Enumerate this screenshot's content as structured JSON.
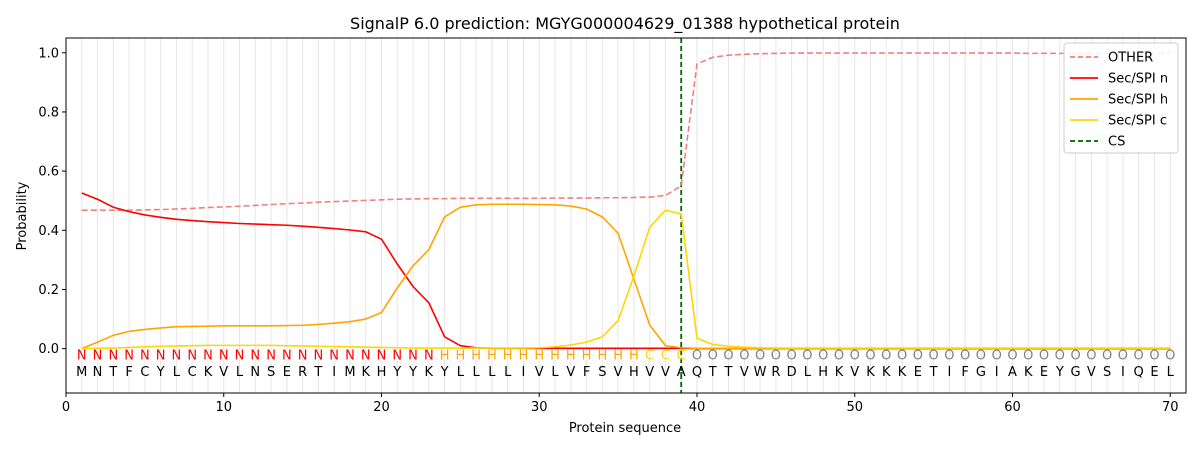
{
  "chart_data": {
    "type": "line",
    "title": "SignalP 6.0 prediction: MGYG000004629_01388 hypothetical protein",
    "xlabel": "Protein sequence",
    "ylabel": "Probability",
    "xlim": [
      0,
      71
    ],
    "ylim": [
      -0.15,
      1.05
    ],
    "x_ticks": [
      0,
      10,
      20,
      30,
      40,
      50,
      60,
      70
    ],
    "y_ticks": [
      0.0,
      0.2,
      0.4,
      0.6,
      0.8,
      1.0
    ],
    "y_tick_labels": [
      "0.0",
      "0.2",
      "0.4",
      "0.6",
      "0.8",
      "1.0"
    ],
    "grid": "vertical lines at each residue",
    "legend_position": "top-right",
    "sequence": [
      "M",
      "N",
      "T",
      "F",
      "C",
      "Y",
      "L",
      "C",
      "K",
      "V",
      "L",
      "N",
      "S",
      "E",
      "R",
      "T",
      "I",
      "M",
      "K",
      "H",
      "Y",
      "Y",
      "K",
      "Y",
      "L",
      "L",
      "L",
      "L",
      "I",
      "V",
      "L",
      "V",
      "F",
      "S",
      "V",
      "H",
      "V",
      "V",
      "A",
      "Q",
      "T",
      "T",
      "V",
      "W",
      "R",
      "D",
      "L",
      "H",
      "K",
      "V",
      "K",
      "K",
      "K",
      "E",
      "T",
      "I",
      "F",
      "G",
      "I",
      "A",
      "K",
      "E",
      "Y",
      "G",
      "V",
      "S",
      "I",
      "Q",
      "E",
      "L"
    ],
    "labels": [
      "N",
      "N",
      "N",
      "N",
      "N",
      "N",
      "N",
      "N",
      "N",
      "N",
      "N",
      "N",
      "N",
      "N",
      "N",
      "N",
      "N",
      "N",
      "N",
      "N",
      "N",
      "N",
      "N",
      "H",
      "H",
      "H",
      "H",
      "H",
      "H",
      "H",
      "H",
      "H",
      "H",
      "H",
      "H",
      "H",
      "C",
      "C",
      "C",
      "O",
      "O",
      "O",
      "O",
      "O",
      "O",
      "O",
      "O",
      "O",
      "O",
      "O",
      "O",
      "O",
      "O",
      "O",
      "O",
      "O",
      "O",
      "O",
      "O",
      "O",
      "O",
      "O",
      "O",
      "O",
      "O",
      "O",
      "O",
      "O",
      "O",
      "O"
    ],
    "label_colors": {
      "N": "#ff0000",
      "H": "#ffa500",
      "C": "#ffd700",
      "O": "#808080"
    },
    "cs_position": 39,
    "series": [
      {
        "name": "OTHER",
        "color": "#f08080",
        "dash": "dashed",
        "values": [
          0.468,
          0.468,
          0.468,
          0.468,
          0.469,
          0.47,
          0.472,
          0.474,
          0.477,
          0.479,
          0.481,
          0.484,
          0.487,
          0.49,
          0.492,
          0.495,
          0.497,
          0.499,
          0.501,
          0.503,
          0.505,
          0.506,
          0.507,
          0.507,
          0.508,
          0.508,
          0.508,
          0.508,
          0.508,
          0.508,
          0.509,
          0.509,
          0.509,
          0.51,
          0.51,
          0.511,
          0.512,
          0.518,
          0.55,
          0.962,
          0.985,
          0.992,
          0.995,
          0.997,
          0.998,
          0.999,
          0.999,
          0.999,
          0.999,
          0.999,
          0.999,
          0.999,
          0.999,
          0.999,
          0.999,
          0.999,
          0.999,
          0.999,
          0.999,
          0.999,
          0.998,
          0.998,
          0.998,
          0.998,
          0.998,
          0.998,
          0.998,
          0.998,
          0.998,
          0.998
        ]
      },
      {
        "name": "Sec/SPI n",
        "color": "#ff0000",
        "dash": "solid",
        "values": [
          0.526,
          0.505,
          0.478,
          0.463,
          0.452,
          0.444,
          0.437,
          0.433,
          0.429,
          0.426,
          0.423,
          0.421,
          0.419,
          0.417,
          0.414,
          0.41,
          0.406,
          0.401,
          0.395,
          0.37,
          0.286,
          0.21,
          0.155,
          0.04,
          0.01,
          0.003,
          0.001,
          0.001,
          0.001,
          0.001,
          0.001,
          0.001,
          0.001,
          0.001,
          0.001,
          0.001,
          0.001,
          0.001,
          0.001,
          0.0,
          0.0,
          0.0,
          0.0,
          0.0,
          0.0,
          0.0,
          0.0,
          0.0,
          0.0,
          0.0,
          0.0,
          0.0,
          0.0,
          0.0,
          0.0,
          0.0,
          0.0,
          0.0,
          0.0,
          0.0,
          0.0,
          0.0,
          0.0,
          0.0,
          0.0,
          0.0,
          0.0,
          0.0,
          0.0,
          0.0
        ]
      },
      {
        "name": "Sec/SPI h",
        "color": "#ffa500",
        "dash": "solid",
        "values": [
          0.0,
          0.022,
          0.045,
          0.058,
          0.065,
          0.07,
          0.074,
          0.075,
          0.076,
          0.077,
          0.077,
          0.077,
          0.077,
          0.078,
          0.079,
          0.082,
          0.086,
          0.091,
          0.1,
          0.122,
          0.205,
          0.28,
          0.335,
          0.445,
          0.478,
          0.486,
          0.488,
          0.488,
          0.488,
          0.487,
          0.486,
          0.482,
          0.472,
          0.445,
          0.39,
          0.235,
          0.08,
          0.01,
          0.003,
          0.001,
          0.001,
          0.001,
          0.001,
          0.001,
          0.001,
          0.001,
          0.001,
          0.001,
          0.001,
          0.001,
          0.001,
          0.001,
          0.001,
          0.001,
          0.001,
          0.001,
          0.001,
          0.001,
          0.001,
          0.001,
          0.001,
          0.001,
          0.001,
          0.001,
          0.001,
          0.001,
          0.001,
          0.001,
          0.001,
          0.001
        ]
      },
      {
        "name": "Sec/SPI c",
        "color": "#ffd700",
        "dash": "solid",
        "values": [
          0.0,
          0.001,
          0.002,
          0.004,
          0.006,
          0.008,
          0.009,
          0.01,
          0.011,
          0.011,
          0.011,
          0.011,
          0.011,
          0.01,
          0.009,
          0.008,
          0.007,
          0.006,
          0.005,
          0.004,
          0.003,
          0.002,
          0.002,
          0.002,
          0.002,
          0.002,
          0.002,
          0.002,
          0.002,
          0.003,
          0.006,
          0.012,
          0.022,
          0.04,
          0.095,
          0.245,
          0.41,
          0.468,
          0.455,
          0.035,
          0.014,
          0.008,
          0.005,
          0.003,
          0.002,
          0.002,
          0.002,
          0.002,
          0.002,
          0.002,
          0.002,
          0.002,
          0.002,
          0.002,
          0.002,
          0.002,
          0.002,
          0.002,
          0.002,
          0.002,
          0.002,
          0.002,
          0.002,
          0.002,
          0.002,
          0.002,
          0.002,
          0.002,
          0.002,
          0.002
        ]
      }
    ],
    "cs_legend": {
      "name": "CS",
      "color": "#006400",
      "dash": "dashed"
    }
  }
}
